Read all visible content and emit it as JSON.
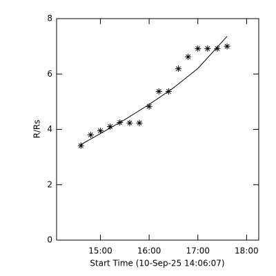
{
  "chart_data": {
    "type": "scatter",
    "xlabel": "Start Time (10-Sep-25 14:06:07)",
    "ylabel": "R/Rs",
    "xlim": [
      14.1,
      18.25
    ],
    "ylim": [
      0,
      8
    ],
    "xticks": [
      {
        "value": 15,
        "label": "15:00"
      },
      {
        "value": 16,
        "label": "16:00"
      },
      {
        "value": 17,
        "label": "17:00"
      },
      {
        "value": 18,
        "label": "18:00"
      }
    ],
    "yticks": [
      0,
      2,
      4,
      6,
      8
    ],
    "color": "#000000",
    "x": [
      14.6,
      14.8,
      15.0,
      15.2,
      15.4,
      15.6,
      15.8,
      16.0,
      16.2,
      16.4,
      16.6,
      16.8,
      17.0,
      17.2,
      17.4,
      17.6
    ],
    "values": [
      3.41,
      3.8,
      3.95,
      4.1,
      4.25,
      4.23,
      4.23,
      4.83,
      5.37,
      5.37,
      6.19,
      6.62,
      6.92,
      6.92,
      6.92,
      7.0
    ],
    "fit": {
      "x": [
        14.6,
        15.0,
        15.5,
        16.0,
        16.5,
        17.0,
        17.6
      ],
      "values": [
        3.45,
        3.85,
        4.35,
        4.9,
        5.5,
        6.2,
        7.36
      ]
    }
  }
}
